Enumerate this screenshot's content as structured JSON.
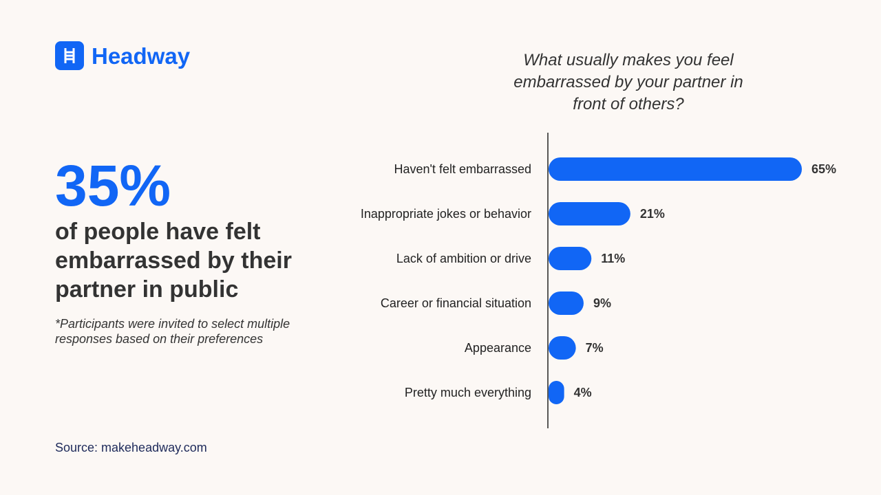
{
  "brand": "Headway",
  "stat": "35%",
  "headline": "of people have felt embarrassed by their partner in public",
  "footnote": "*Participants were invited to select multiple responses based on their preferences",
  "source": "Source: makeheadway.com",
  "chart_data": {
    "type": "bar",
    "orientation": "horizontal",
    "title": "What usually makes you feel embarrassed by your partner in front of others?",
    "categories": [
      "Haven't felt embarrassed",
      "Inappropriate jokes or behavior",
      "Lack of ambition or drive",
      "Career or financial situation",
      "Appearance",
      "Pretty much everything"
    ],
    "values": [
      65,
      21,
      11,
      9,
      7,
      4
    ],
    "value_labels": [
      "65%",
      "21%",
      "11%",
      "9%",
      "7%",
      "4%"
    ],
    "color": "#1166f5"
  }
}
